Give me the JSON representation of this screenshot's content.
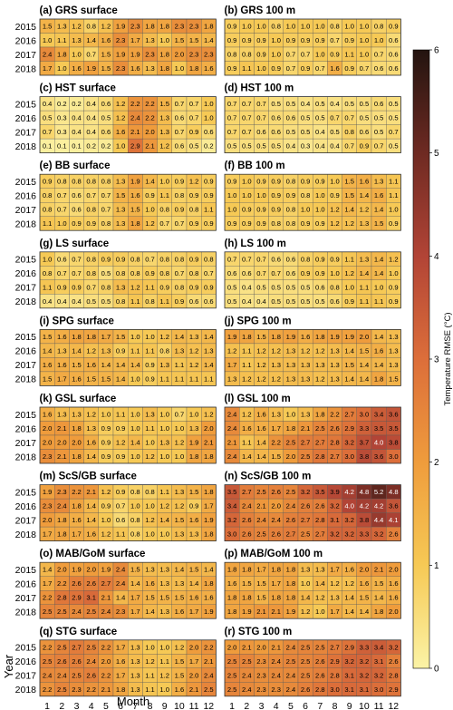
{
  "chart_data": {
    "type": "heatmap",
    "xlabel": "Month",
    "ylabel": "Year",
    "x_ticks": [
      "1",
      "2",
      "3",
      "4",
      "5",
      "6",
      "7",
      "8",
      "9",
      "10",
      "11",
      "12"
    ],
    "years": [
      "2015",
      "2016",
      "2017",
      "2018"
    ],
    "colorbar": {
      "label": "Temperature RMSE (°C)",
      "min": 0,
      "max": 6,
      "ticks": [
        "0",
        "1",
        "2",
        "3",
        "4",
        "5",
        "6"
      ],
      "colors": [
        "#fbf3a6",
        "#f6c955",
        "#ef9c3c",
        "#dc6e3a",
        "#b24436",
        "#6e2a22",
        "#231410"
      ]
    },
    "panels": [
      {
        "title": "(a) GRS surface",
        "values": [
          [
            1.5,
            1.3,
            1.2,
            0.8,
            1.2,
            1.9,
            2.3,
            1.8,
            1.8,
            2.3,
            2.3,
            1.8
          ],
          [
            1.0,
            1.1,
            1.3,
            1.4,
            1.6,
            2.3,
            1.7,
            1.3,
            1.0,
            1.5,
            1.5,
            1.4
          ],
          [
            2.4,
            1.8,
            1.0,
            0.7,
            1.5,
            1.9,
            1.9,
            2.3,
            1.8,
            2.0,
            2.3,
            2.3
          ],
          [
            1.7,
            1.0,
            1.6,
            1.9,
            1.5,
            2.3,
            1.6,
            1.3,
            1.8,
            1.0,
            1.8,
            1.6
          ]
        ]
      },
      {
        "title": "(b) GRS 100 m",
        "values": [
          [
            0.9,
            1.0,
            1.0,
            0.8,
            1.0,
            1.0,
            1.0,
            0.8,
            1.0,
            1.0,
            0.8,
            0.9
          ],
          [
            0.9,
            0.9,
            0.9,
            1.0,
            0.9,
            0.9,
            0.9,
            0.7,
            0.9,
            1.0,
            1.0,
            0.6
          ],
          [
            0.8,
            0.8,
            0.9,
            1.0,
            0.7,
            0.7,
            1.0,
            0.9,
            1.1,
            1.0,
            0.7,
            0.6
          ],
          [
            0.9,
            1.1,
            1.0,
            0.9,
            0.7,
            0.9,
            0.7,
            1.6,
            0.9,
            0.7,
            0.6,
            0.6
          ]
        ]
      },
      {
        "title": "(c) HST surface",
        "values": [
          [
            0.4,
            0.2,
            0.2,
            0.4,
            0.6,
            1.2,
            2.2,
            2.2,
            1.5,
            0.7,
            0.7,
            1.0
          ],
          [
            0.5,
            0.3,
            0.4,
            0.4,
            0.5,
            1.2,
            2.4,
            2.2,
            1.3,
            0.6,
            0.7,
            1.0
          ],
          [
            0.7,
            0.3,
            0.4,
            0.4,
            0.6,
            1.6,
            2.1,
            2.0,
            1.3,
            0.7,
            0.9,
            0.6
          ],
          [
            0.1,
            0.1,
            0.1,
            0.2,
            0.2,
            1.0,
            2.9,
            2.1,
            1.2,
            0.6,
            0.5,
            0.2
          ]
        ]
      },
      {
        "title": "(d) HST 100 m",
        "values": [
          [
            0.7,
            0.7,
            0.7,
            0.5,
            0.5,
            0.4,
            0.5,
            0.4,
            0.5,
            0.5,
            0.6,
            0.5
          ],
          [
            0.7,
            0.7,
            0.7,
            0.6,
            0.6,
            0.5,
            0.5,
            0.7,
            0.7,
            0.5,
            0.5,
            0.5
          ],
          [
            0.7,
            0.7,
            0.6,
            0.6,
            0.5,
            0.5,
            0.4,
            0.5,
            0.8,
            0.6,
            0.5,
            0.7
          ],
          [
            0.5,
            0.5,
            0.5,
            0.5,
            0.4,
            0.3,
            0.4,
            0.4,
            0.7,
            0.9,
            0.7,
            0.5
          ]
        ]
      },
      {
        "title": "(e) BB surface",
        "values": [
          [
            0.9,
            0.8,
            0.8,
            0.8,
            0.8,
            1.3,
            1.9,
            1.4,
            1.0,
            0.9,
            1.2,
            0.9
          ],
          [
            0.8,
            0.7,
            0.6,
            0.7,
            0.7,
            1.5,
            1.6,
            0.9,
            1.1,
            0.8,
            0.9,
            0.9
          ],
          [
            0.8,
            0.7,
            0.6,
            0.8,
            0.7,
            1.3,
            1.5,
            1.0,
            0.8,
            0.9,
            0.8,
            1.1
          ],
          [
            1.1,
            1.0,
            0.9,
            0.9,
            0.8,
            1.3,
            1.8,
            1.2,
            0.7,
            0.7,
            0.9,
            0.9
          ]
        ]
      },
      {
        "title": "(f) BB 100 m",
        "values": [
          [
            0.9,
            1.0,
            0.9,
            0.9,
            0.8,
            0.9,
            0.9,
            1.0,
            1.5,
            1.6,
            1.3,
            1.1
          ],
          [
            1.0,
            1.0,
            1.0,
            0.9,
            0.9,
            0.8,
            1.0,
            0.9,
            1.5,
            1.4,
            1.6,
            1.1
          ],
          [
            1.0,
            0.9,
            0.9,
            0.9,
            0.8,
            1.0,
            1.0,
            1.2,
            1.4,
            1.2,
            1.4,
            1.0
          ],
          [
            0.9,
            0.9,
            0.9,
            0.8,
            0.8,
            0.9,
            0.9,
            1.2,
            1.2,
            1.3,
            1.5,
            0.9
          ]
        ]
      },
      {
        "title": "(g) LS surface",
        "values": [
          [
            1.0,
            0.6,
            0.7,
            0.8,
            0.9,
            0.9,
            0.8,
            0.7,
            0.8,
            0.8,
            0.9,
            0.8
          ],
          [
            0.8,
            0.7,
            0.7,
            0.8,
            0.5,
            0.8,
            0.8,
            0.9,
            0.8,
            0.7,
            0.8,
            0.7
          ],
          [
            1.1,
            0.9,
            0.9,
            0.7,
            0.8,
            1.3,
            1.2,
            1.1,
            0.9,
            0.8,
            0.9,
            0.9
          ],
          [
            0.4,
            0.4,
            0.4,
            0.5,
            0.5,
            0.8,
            1.1,
            0.8,
            1.1,
            0.9,
            0.6,
            0.6
          ]
        ]
      },
      {
        "title": "(h) LS 100 m",
        "values": [
          [
            0.7,
            0.7,
            0.7,
            0.6,
            0.6,
            0.8,
            0.9,
            0.9,
            1.1,
            1.3,
            1.4,
            1.2
          ],
          [
            0.6,
            0.6,
            0.7,
            0.7,
            0.6,
            0.9,
            0.9,
            1.0,
            1.2,
            1.4,
            1.4,
            1.0
          ],
          [
            0.5,
            0.4,
            0.5,
            0.5,
            0.5,
            0.5,
            0.6,
            0.8,
            1.0,
            1.1,
            1.0,
            0.9
          ],
          [
            0.5,
            0.4,
            0.4,
            0.5,
            0.5,
            0.5,
            0.5,
            0.6,
            0.9,
            1.1,
            1.1,
            0.9
          ]
        ]
      },
      {
        "title": "(i) SPG surface",
        "values": [
          [
            1.5,
            1.6,
            1.8,
            1.8,
            1.7,
            1.5,
            1.0,
            1.0,
            1.2,
            1.4,
            1.3,
            1.4
          ],
          [
            1.4,
            1.3,
            1.4,
            1.2,
            1.3,
            0.9,
            1.1,
            1.1,
            0.8,
            1.3,
            1.2,
            1.3
          ],
          [
            1.6,
            1.6,
            1.5,
            1.6,
            1.4,
            1.4,
            1.4,
            0.9,
            1.3,
            1.1,
            1.2,
            1.4
          ],
          [
            1.5,
            1.7,
            1.6,
            1.5,
            1.5,
            1.4,
            1.0,
            0.9,
            1.1,
            1.1,
            1.1,
            1.1
          ]
        ]
      },
      {
        "title": "(j) SPG 100 m",
        "values": [
          [
            1.9,
            1.8,
            1.5,
            1.8,
            1.9,
            1.6,
            1.8,
            1.9,
            1.9,
            2.0,
            1.4,
            1.3
          ],
          [
            1.2,
            1.1,
            1.2,
            1.2,
            1.3,
            1.2,
            1.2,
            1.3,
            1.4,
            1.5,
            1.6,
            1.3
          ],
          [
            1.7,
            1.1,
            1.2,
            1.3,
            1.3,
            1.3,
            1.3,
            1.3,
            1.5,
            1.4,
            1.4,
            1.3
          ],
          [
            1.3,
            1.2,
            1.2,
            1.2,
            1.3,
            1.3,
            1.2,
            1.3,
            1.4,
            1.4,
            1.8,
            1.5
          ]
        ]
      },
      {
        "title": "(k) GSL surface",
        "values": [
          [
            1.6,
            1.3,
            1.3,
            1.2,
            1.0,
            1.1,
            1.0,
            1.3,
            1.0,
            0.7,
            1.0,
            1.2
          ],
          [
            2.0,
            2.1,
            1.8,
            1.3,
            0.9,
            0.9,
            1.0,
            1.1,
            1.0,
            1.0,
            1.3,
            2.0
          ],
          [
            2.0,
            2.0,
            2.0,
            1.6,
            0.9,
            1.2,
            1.4,
            1.0,
            1.3,
            1.2,
            1.9,
            2.1
          ],
          [
            2.3,
            2.1,
            1.8,
            1.4,
            0.9,
            0.9,
            1.0,
            1.2,
            1.0,
            1.0,
            1.8,
            1.8
          ]
        ]
      },
      {
        "title": "(l) GSL 100 m",
        "values": [
          [
            2.4,
            1.2,
            1.6,
            1.3,
            1.0,
            1.3,
            1.8,
            2.2,
            2.7,
            3.0,
            3.4,
            3.6
          ],
          [
            2.4,
            1.6,
            1.6,
            1.7,
            1.8,
            2.1,
            2.5,
            2.6,
            2.9,
            3.3,
            3.5,
            3.5
          ],
          [
            2.1,
            1.1,
            1.4,
            2.2,
            2.5,
            2.7,
            2.7,
            2.8,
            3.2,
            3.7,
            4.0,
            3.8
          ],
          [
            2.4,
            1.4,
            1.4,
            1.5,
            2.0,
            2.5,
            2.8,
            2.7,
            3.0,
            3.8,
            3.6,
            3.0
          ]
        ]
      },
      {
        "title": "(m) ScS/GB surface",
        "values": [
          [
            1.9,
            2.3,
            2.2,
            2.1,
            1.2,
            0.9,
            0.8,
            0.8,
            1.1,
            1.3,
            1.5,
            1.8
          ],
          [
            2.3,
            2.4,
            1.8,
            1.4,
            0.9,
            0.7,
            1.0,
            1.0,
            1.2,
            1.2,
            0.9,
            1.7
          ],
          [
            2.0,
            1.8,
            1.6,
            1.4,
            1.0,
            0.6,
            0.8,
            1.2,
            1.4,
            1.5,
            1.6,
            1.9
          ],
          [
            1.7,
            1.8,
            1.7,
            1.6,
            1.2,
            1.1,
            0.8,
            1.0,
            1.0,
            1.3,
            1.3,
            1.8
          ]
        ]
      },
      {
        "title": "(n) ScS/GB 100 m",
        "values": [
          [
            3.5,
            2.7,
            2.5,
            2.6,
            2.5,
            3.2,
            3.5,
            3.9,
            4.2,
            4.8,
            5.2,
            4.8
          ],
          [
            3.4,
            2.4,
            2.1,
            2.0,
            2.4,
            2.6,
            2.6,
            3.2,
            4.0,
            4.2,
            4.2,
            3.6
          ],
          [
            3.2,
            2.6,
            2.4,
            2.4,
            2.6,
            2.7,
            2.8,
            3.1,
            3.2,
            3.8,
            4.4,
            4.1
          ],
          [
            3.0,
            2.6,
            2.5,
            2.6,
            2.7,
            2.5,
            2.7,
            3.2,
            3.2,
            3.3,
            3.2,
            2.6
          ]
        ]
      },
      {
        "title": "(o) MAB/GoM surface",
        "values": [
          [
            1.4,
            2.0,
            1.9,
            2.0,
            1.9,
            2.4,
            1.5,
            1.3,
            1.3,
            1.4,
            1.5,
            1.4
          ],
          [
            1.7,
            2.2,
            2.6,
            2.6,
            2.7,
            2.4,
            1.4,
            1.6,
            1.3,
            1.3,
            1.4,
            1.8
          ],
          [
            2.2,
            2.8,
            2.9,
            3.1,
            2.1,
            1.4,
            1.7,
            1.5,
            1.5,
            1.5,
            1.6,
            1.6
          ],
          [
            2.5,
            2.5,
            2.4,
            2.5,
            2.4,
            2.3,
            1.7,
            1.4,
            1.3,
            1.6,
            1.7,
            1.9
          ]
        ]
      },
      {
        "title": "(p) MAB/GoM 100 m",
        "values": [
          [
            1.8,
            1.8,
            1.7,
            1.8,
            1.8,
            1.3,
            1.3,
            1.7,
            1.6,
            2.0,
            2.1,
            2.0
          ],
          [
            1.6,
            1.5,
            1.5,
            1.7,
            1.8,
            1.0,
            1.4,
            1.2,
            1.2,
            1.6,
            1.5,
            1.6
          ],
          [
            1.8,
            1.8,
            1.5,
            1.8,
            1.8,
            1.4,
            1.2,
            1.3,
            1.4,
            1.5,
            1.4,
            1.6
          ],
          [
            1.8,
            1.9,
            2.1,
            2.1,
            1.9,
            1.2,
            1.0,
            1.7,
            1.4,
            1.4,
            1.8,
            2.0
          ]
        ]
      },
      {
        "title": "(q) STG surface",
        "values": [
          [
            2.2,
            2.5,
            2.7,
            2.5,
            2.2,
            1.7,
            1.3,
            1.0,
            1.0,
            1.2,
            2.0,
            2.2
          ],
          [
            2.5,
            2.6,
            2.6,
            2.4,
            2.0,
            1.6,
            1.3,
            1.2,
            1.1,
            1.5,
            1.7,
            2.1
          ],
          [
            2.4,
            2.4,
            2.5,
            2.6,
            2.2,
            1.7,
            1.3,
            1.1,
            1.2,
            1.5,
            2.0,
            2.4
          ],
          [
            2.2,
            2.5,
            2.3,
            2.2,
            2.1,
            1.8,
            1.3,
            1.1,
            1.0,
            1.6,
            2.1,
            2.5
          ]
        ]
      },
      {
        "title": "(r) STG 100 m",
        "values": [
          [
            2.0,
            2.1,
            2.0,
            2.1,
            2.4,
            2.5,
            2.5,
            2.7,
            2.9,
            3.3,
            3.4,
            3.2
          ],
          [
            2.5,
            2.5,
            2.3,
            2.4,
            2.5,
            2.5,
            2.6,
            2.9,
            3.2,
            3.2,
            3.1,
            2.6
          ],
          [
            2.5,
            2.4,
            2.3,
            2.4,
            2.4,
            2.5,
            2.6,
            2.8,
            3.1,
            3.2,
            3.2,
            2.8
          ],
          [
            2.5,
            2.4,
            2.3,
            2.3,
            2.4,
            2.6,
            2.8,
            3.0,
            3.1,
            3.1,
            3.0,
            2.9
          ]
        ]
      }
    ]
  }
}
